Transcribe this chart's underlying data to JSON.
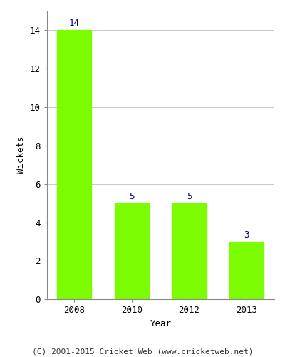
{
  "categories": [
    "2008",
    "2010",
    "2012",
    "2013"
  ],
  "values": [
    14,
    5,
    5,
    3
  ],
  "bar_color": "#7CFC00",
  "bar_width": 0.6,
  "ylabel": "Wickets",
  "xlabel": "Year",
  "ylim": [
    0,
    15
  ],
  "yticks": [
    0,
    2,
    4,
    6,
    8,
    10,
    12,
    14
  ],
  "annotation_color": "#000080",
  "annotation_fontsize": 9,
  "axis_label_fontsize": 9,
  "tick_fontsize": 9,
  "footer_text": "(C) 2001-2015 Cricket Web (www.cricketweb.net)",
  "footer_fontsize": 8,
  "background_color": "#ffffff",
  "grid_color": "#c8c8c8"
}
